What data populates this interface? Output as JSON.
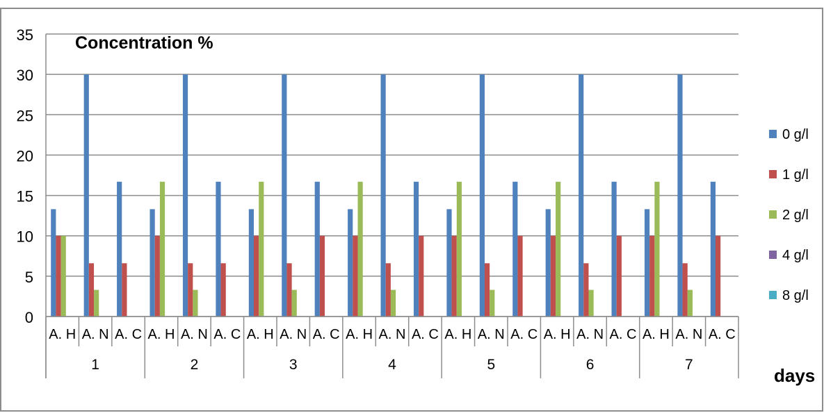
{
  "chart_data": {
    "type": "bar",
    "title": "Concentration %",
    "xlabel": "days",
    "ylabel": "",
    "ylim": [
      0,
      35
    ],
    "yticks": [
      0,
      5,
      10,
      15,
      20,
      25,
      30,
      35
    ],
    "grid": "horizontal",
    "legend_position": "right",
    "subcategories": [
      "A. H",
      "A. N",
      "A. C"
    ],
    "days": [
      "1",
      "2",
      "3",
      "4",
      "5",
      "6",
      "7"
    ],
    "series": [
      {
        "name": "0 g/l",
        "color": "#4f81bd",
        "values": [
          13.3,
          30,
          16.7,
          13.3,
          30,
          16.7,
          13.3,
          30,
          16.7,
          13.3,
          30,
          16.7,
          13.3,
          30,
          16.7,
          13.3,
          30,
          16.7,
          13.3,
          30,
          16.7
        ]
      },
      {
        "name": "1 g/l",
        "color": "#c0504d",
        "values": [
          10,
          6.6,
          6.6,
          10,
          6.6,
          6.6,
          10,
          6.6,
          10,
          10,
          6.6,
          10,
          10,
          6.6,
          10,
          10,
          6.6,
          10,
          10,
          6.6,
          10
        ]
      },
      {
        "name": "2 g/l",
        "color": "#9bbb59",
        "values": [
          10,
          3.3,
          0,
          16.7,
          3.3,
          0,
          16.7,
          3.3,
          0,
          16.7,
          3.3,
          0,
          16.7,
          3.3,
          0,
          16.7,
          3.3,
          0,
          16.7,
          3.3,
          0
        ]
      },
      {
        "name": "4 g/l",
        "color": "#8064a2",
        "values": [
          0,
          0,
          0,
          0,
          0,
          0,
          0,
          0,
          0,
          0,
          0,
          0,
          0,
          0,
          0,
          0,
          0,
          0,
          0,
          0,
          0
        ]
      },
      {
        "name": "8 g/l",
        "color": "#4bacc6",
        "values": [
          0,
          0,
          0,
          0,
          0,
          0,
          0,
          0,
          0,
          0,
          0,
          0,
          0,
          0,
          0,
          0,
          0,
          0,
          0,
          0,
          0
        ]
      }
    ]
  }
}
